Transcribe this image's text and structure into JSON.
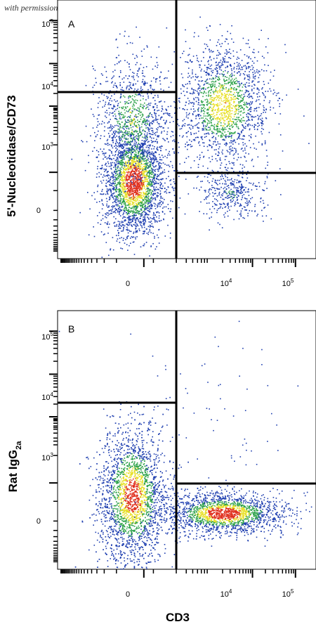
{
  "watermark": "with permission from R&D Systems",
  "xlabel": "CD3",
  "x_tick_labels": [
    "0",
    "10^4",
    "10^5"
  ],
  "y_tick_labels": [
    "0",
    "10^3",
    "10^4",
    "10^5"
  ],
  "chart_data": [
    {
      "type": "scatter",
      "panel_label": "A",
      "xlabel": "CD3",
      "ylabel": "5'-Nucleotidase/CD73",
      "x_ticks": [
        "0",
        "10^4",
        "10^5"
      ],
      "y_ticks": [
        "0",
        "10^3",
        "10^4",
        "10^5"
      ],
      "x_scale": "biexponential",
      "y_scale": "biexponential",
      "quadrant_gates": {
        "x_divider": 2000,
        "y_divider_left": 8000,
        "y_divider_right": 500
      },
      "populations": [
        {
          "name": "CD3- CD73 low",
          "x_center": 0,
          "y_center": 100,
          "density": "high"
        },
        {
          "name": "CD3+ CD73+",
          "x_center": 9000,
          "y_center": 4000,
          "density": "medium"
        },
        {
          "name": "CD3+ CD73 low",
          "x_center": 9000,
          "y_center": 100,
          "density": "low"
        }
      ],
      "colormap": [
        "#1f3fb0",
        "#2ea24a",
        "#e8e02a",
        "#e0301e"
      ]
    },
    {
      "type": "scatter",
      "panel_label": "B",
      "xlabel": "CD3",
      "ylabel": "Rat IgG2a",
      "ylabel_main": "Rat IgG",
      "ylabel_sub": "2a",
      "x_ticks": [
        "0",
        "10^4",
        "10^5"
      ],
      "y_ticks": [
        "0",
        "10^3",
        "10^4",
        "10^5"
      ],
      "x_scale": "biexponential",
      "y_scale": "biexponential",
      "quadrant_gates": {
        "x_divider": 2000,
        "y_divider_left": 8000,
        "y_divider_right": 500
      },
      "populations": [
        {
          "name": "CD3- isotype",
          "x_center": 0,
          "y_center": 80,
          "density": "high"
        },
        {
          "name": "CD3+ isotype",
          "x_center": 9000,
          "y_center": 20,
          "density": "high"
        }
      ],
      "colormap": [
        "#1f3fb0",
        "#2ea24a",
        "#e8e02a",
        "#e0301e"
      ]
    }
  ]
}
